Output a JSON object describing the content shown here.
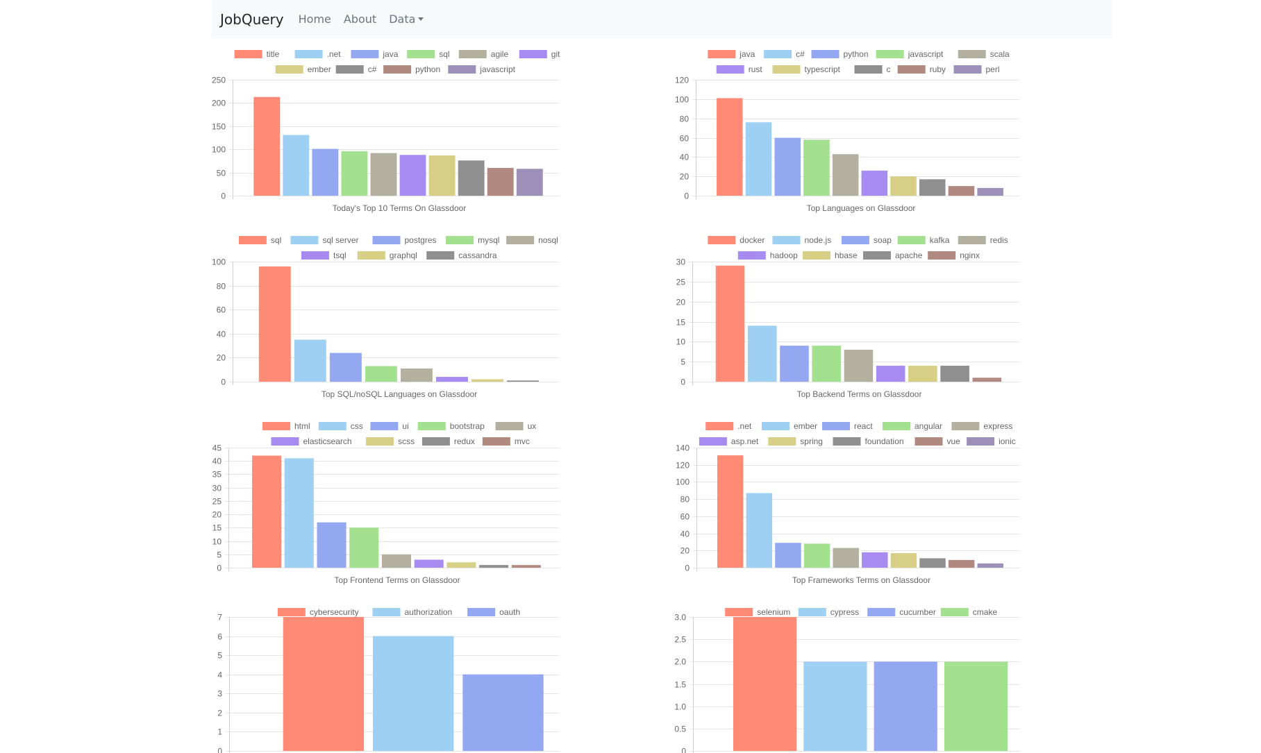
{
  "navbar": {
    "brand": "JobQuery",
    "links": [
      {
        "label": "Home"
      },
      {
        "label": "About"
      },
      {
        "label": "Data"
      }
    ]
  },
  "palette": [
    "#ff8a75",
    "#9ed0f3",
    "#94a8f2",
    "#a3e08f",
    "#b3b09f",
    "#a78bf0",
    "#d6cf85",
    "#8f8f8f",
    "#b08a80",
    "#9c8fb8"
  ],
  "chart_data": [
    {
      "type": "bar",
      "title": "Today's Top 10 Terms On Glassdoor",
      "categories": [
        "title",
        ".net",
        "java",
        "sql",
        "agile",
        "git",
        "ember",
        "c#",
        "python",
        "javascript"
      ],
      "values": [
        213,
        131,
        101,
        96,
        92,
        88,
        87,
        76,
        60,
        58
      ],
      "ylim": [
        0,
        250
      ],
      "yticks": [
        0,
        50,
        100,
        150,
        200,
        250
      ],
      "legend_rows": [
        6,
        4
      ]
    },
    {
      "type": "bar",
      "title": "Top Languages on Glassdoor",
      "categories": [
        "java",
        "c#",
        "python",
        "javascript",
        "scala",
        "rust",
        "typescript",
        "c",
        "ruby",
        "perl"
      ],
      "values": [
        101,
        76,
        60,
        58,
        43,
        26,
        20,
        17,
        10,
        8
      ],
      "ylim": [
        0,
        120
      ],
      "yticks": [
        0,
        20,
        40,
        60,
        80,
        100,
        120
      ],
      "legend_rows": [
        5,
        5
      ]
    },
    {
      "type": "bar",
      "title": "Top SQL/noSQL Languages on Glassdoor",
      "categories": [
        "sql",
        "sql server",
        "postgres",
        "mysql",
        "nosql",
        "tsql",
        "graphql",
        "cassandra"
      ],
      "values": [
        96,
        35,
        24,
        13,
        11,
        4,
        2,
        1
      ],
      "ylim": [
        0,
        100
      ],
      "yticks": [
        0,
        20,
        40,
        60,
        80,
        100
      ],
      "legend_rows": [
        5,
        3
      ]
    },
    {
      "type": "bar",
      "title": "Top Backend Terms on Glassdoor",
      "categories": [
        "docker",
        "node.js",
        "soap",
        "kafka",
        "redis",
        "hadoop",
        "hbase",
        "apache",
        "nginx"
      ],
      "values": [
        29,
        14,
        9,
        9,
        8,
        4,
        4,
        4,
        1
      ],
      "ylim": [
        0,
        30
      ],
      "yticks": [
        0,
        5,
        10,
        15,
        20,
        25,
        30
      ],
      "legend_rows": [
        5,
        4
      ]
    },
    {
      "type": "bar",
      "title": "Top Frontend Terms on Glassdoor",
      "categories": [
        "html",
        "css",
        "ui",
        "bootstrap",
        "ux",
        "elasticsearch",
        "scss",
        "redux",
        "mvc"
      ],
      "values": [
        42,
        41,
        17,
        15,
        5,
        3,
        2,
        1,
        1
      ],
      "ylim": [
        0,
        45
      ],
      "yticks": [
        0,
        5,
        10,
        15,
        20,
        25,
        30,
        35,
        40,
        45
      ],
      "legend_rows": [
        5,
        4
      ]
    },
    {
      "type": "bar",
      "title": "Top Frameworks Terms on Glassdoor",
      "categories": [
        ".net",
        "ember",
        "react",
        "angular",
        "express",
        "asp.net",
        "spring",
        "foundation",
        "vue",
        "ionic"
      ],
      "values": [
        131,
        87,
        29,
        28,
        23,
        18,
        17,
        11,
        9,
        5
      ],
      "ylim": [
        0,
        140
      ],
      "yticks": [
        0,
        20,
        40,
        60,
        80,
        100,
        120,
        140
      ],
      "legend_rows": [
        5,
        5
      ]
    },
    {
      "type": "bar",
      "title": "",
      "categories": [
        "cybersecurity",
        "authorization",
        "oauth"
      ],
      "values": [
        7,
        6,
        4
      ],
      "ylim": [
        0,
        7
      ],
      "yticks": [
        0,
        1,
        2,
        3,
        4,
        5,
        6,
        7
      ],
      "legend_rows": [
        3
      ]
    },
    {
      "type": "bar",
      "title": "",
      "categories": [
        "selenium",
        "cypress",
        "cucumber",
        "cmake"
      ],
      "values": [
        3,
        2,
        2,
        2
      ],
      "ylim": [
        0,
        3
      ],
      "yticks": [
        "0",
        "0.5",
        "1.0",
        "1.5",
        "2.0",
        "2.5",
        "3.0"
      ],
      "legend_rows": [
        4
      ]
    }
  ]
}
